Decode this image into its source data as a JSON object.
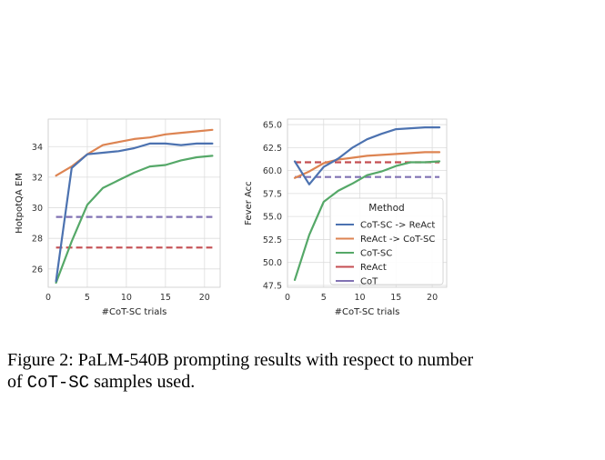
{
  "chart_data": [
    {
      "type": "line",
      "xlabel": "#CoT-SC trials",
      "ylabel": "HotpotQA EM",
      "xlim": [
        0,
        22
      ],
      "ylim": [
        24.8,
        35.8
      ],
      "xticks": [
        0,
        5,
        10,
        15,
        20
      ],
      "yticks": [
        26,
        28,
        30,
        32,
        34
      ],
      "grid": true,
      "series": [
        {
          "name": "CoT-SC -> ReAct",
          "color": "#4c72b0",
          "style": "solid",
          "x": [
            1,
            3,
            5,
            7,
            9,
            11,
            13,
            15,
            17,
            19,
            21
          ],
          "y": [
            25.2,
            32.6,
            33.5,
            33.6,
            33.7,
            33.9,
            34.2,
            34.2,
            34.1,
            34.2,
            34.2
          ]
        },
        {
          "name": "ReAct -> CoT-SC",
          "color": "#dd8452",
          "style": "solid",
          "x": [
            1,
            3,
            5,
            7,
            9,
            11,
            13,
            15,
            17,
            19,
            21
          ],
          "y": [
            32.1,
            32.7,
            33.5,
            34.1,
            34.3,
            34.5,
            34.6,
            34.8,
            34.9,
            35.0,
            35.1
          ]
        },
        {
          "name": "CoT-SC",
          "color": "#55a868",
          "style": "solid",
          "x": [
            1,
            3,
            5,
            7,
            9,
            11,
            13,
            15,
            17,
            19,
            21
          ],
          "y": [
            25.1,
            27.8,
            30.2,
            31.3,
            31.8,
            32.3,
            32.7,
            32.8,
            33.1,
            33.3,
            33.4
          ]
        },
        {
          "name": "ReAct",
          "color": "#c44e52",
          "style": "dashed",
          "x": [
            1,
            21
          ],
          "y": [
            27.4,
            27.4
          ]
        },
        {
          "name": "CoT",
          "color": "#8172b3",
          "style": "dashed",
          "x": [
            1,
            21
          ],
          "y": [
            29.4,
            29.4
          ]
        }
      ]
    },
    {
      "type": "line",
      "xlabel": "#CoT-SC trials",
      "ylabel": "Fever Acc",
      "xlim": [
        0,
        22
      ],
      "ylim": [
        47.3,
        65.6
      ],
      "xticks": [
        0,
        5,
        10,
        15,
        20
      ],
      "yticks": [
        47.5,
        50.0,
        52.5,
        55.0,
        57.5,
        60.0,
        62.5,
        65.0
      ],
      "ytick_labels": [
        "47.5",
        "50.0",
        "52.5",
        "55.0",
        "57.5",
        "60.0",
        "62.5",
        "65.0"
      ],
      "grid": true,
      "legend": {
        "title": "Method",
        "placement": "lower-right"
      },
      "series": [
        {
          "name": "CoT-SC -> ReAct",
          "color": "#4c72b0",
          "style": "solid",
          "x": [
            1,
            3,
            5,
            7,
            9,
            11,
            13,
            15,
            17,
            19,
            21
          ],
          "y": [
            61.0,
            58.5,
            60.4,
            61.3,
            62.5,
            63.4,
            64.0,
            64.5,
            64.6,
            64.7,
            64.7
          ]
        },
        {
          "name": "ReAct -> CoT-SC",
          "color": "#dd8452",
          "style": "solid",
          "x": [
            1,
            3,
            5,
            7,
            9,
            11,
            13,
            15,
            17,
            19,
            21
          ],
          "y": [
            59.2,
            59.9,
            60.8,
            61.2,
            61.4,
            61.6,
            61.7,
            61.8,
            61.9,
            62.0,
            62.0
          ]
        },
        {
          "name": "CoT-SC",
          "color": "#55a868",
          "style": "solid",
          "x": [
            1,
            3,
            5,
            7,
            9,
            11,
            13,
            15,
            17,
            19,
            21
          ],
          "y": [
            48.1,
            53.0,
            56.6,
            57.8,
            58.6,
            59.5,
            59.9,
            60.5,
            60.9,
            60.9,
            61.0
          ]
        },
        {
          "name": "ReAct",
          "color": "#c44e52",
          "style": "dashed",
          "x": [
            1,
            21
          ],
          "y": [
            60.9,
            60.9
          ]
        },
        {
          "name": "CoT",
          "color": "#8172b3",
          "style": "dashed",
          "x": [
            1,
            21
          ],
          "y": [
            59.3,
            59.3
          ]
        }
      ]
    }
  ],
  "caption": {
    "text_before": "Figure 2: PaLM-540B prompting results with respect to number of ",
    "code": "CoT-SC",
    "text_after": " samples used."
  }
}
